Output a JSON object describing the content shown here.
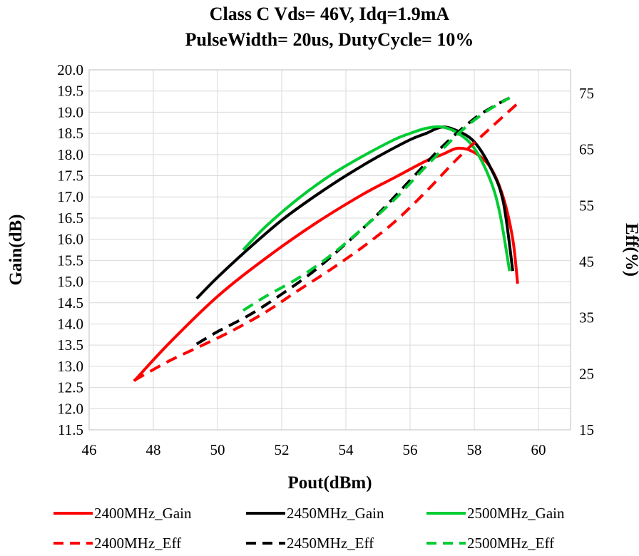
{
  "chart_data": {
    "type": "line",
    "title_lines": [
      "Class C Vds= 46V, Idq=1.9mA",
      "PulseWidth= 20us, DutyCycle= 10%"
    ],
    "xlabel": "Pout(dBm)",
    "ylabel": "Gain(dB)",
    "y2label": "Eff(%)",
    "xlim": [
      46,
      61
    ],
    "ylim": [
      11.5,
      20.0
    ],
    "y2lim": [
      15,
      79.2
    ],
    "x_ticks": [
      46,
      48,
      50,
      52,
      54,
      56,
      58,
      60
    ],
    "y_ticks": [
      11.5,
      12.0,
      12.5,
      13.0,
      13.5,
      14.0,
      14.5,
      15.0,
      15.5,
      16.0,
      16.5,
      17.0,
      17.5,
      18.0,
      18.5,
      19.0,
      19.5,
      20.0
    ],
    "y_tick_labels": [
      "11.5",
      "12.0",
      "12.5",
      "13.0",
      "13.5",
      "14.0",
      "14.5",
      "15.0",
      "15.5",
      "16.0",
      "16.5",
      "17.0",
      "17.5",
      "18.0",
      "18.5",
      "19.0",
      "19.5",
      "20.0"
    ],
    "y2_ticks": [
      15,
      25,
      35,
      45,
      55,
      65,
      75
    ],
    "grid": true,
    "legend_position": "bottom",
    "series": [
      {
        "name": "2400MHz_Gain",
        "axis": "left",
        "color": "#ff0000",
        "dash": false,
        "x": [
          47.4,
          48.5,
          50.0,
          51.5,
          53.0,
          54.5,
          55.5,
          56.5,
          57.0,
          57.5,
          58.0,
          58.5,
          58.9,
          59.2,
          59.35
        ],
        "y": [
          12.65,
          13.55,
          14.65,
          15.55,
          16.35,
          17.05,
          17.45,
          17.85,
          18.0,
          18.15,
          18.05,
          17.7,
          17.0,
          16.0,
          14.95
        ]
      },
      {
        "name": "2450MHz_Gain",
        "axis": "left",
        "color": "#000000",
        "dash": false,
        "x": [
          49.35,
          50.0,
          51.0,
          52.0,
          53.0,
          54.0,
          55.0,
          56.0,
          56.5,
          57.0,
          57.5,
          58.0,
          58.5,
          58.9,
          59.2
        ],
        "y": [
          14.6,
          15.1,
          15.8,
          16.45,
          17.0,
          17.5,
          17.95,
          18.35,
          18.5,
          18.65,
          18.55,
          18.3,
          17.7,
          16.9,
          15.25
        ]
      },
      {
        "name": "2500MHz_Gain",
        "axis": "left",
        "color": "#00cc33",
        "dash": false,
        "x": [
          50.8,
          51.5,
          52.5,
          53.5,
          54.5,
          55.5,
          56.0,
          56.5,
          57.0,
          57.5,
          58.0,
          58.5,
          58.8,
          59.1
        ],
        "y": [
          15.75,
          16.3,
          16.95,
          17.5,
          17.95,
          18.35,
          18.5,
          18.62,
          18.65,
          18.5,
          18.15,
          17.4,
          16.6,
          15.25
        ]
      },
      {
        "name": "2400MHz_Eff",
        "axis": "right",
        "color": "#ff0000",
        "dash": true,
        "x": [
          47.4,
          48.5,
          49.5,
          50.5,
          51.5,
          52.5,
          53.5,
          54.5,
          55.5,
          56.5,
          57.5,
          58.5,
          59.35
        ],
        "y": [
          23.8,
          27.3,
          30.0,
          32.8,
          36.0,
          39.8,
          43.5,
          47.5,
          52.0,
          57.5,
          63.5,
          68.8,
          73.2
        ]
      },
      {
        "name": "2450MHz_Eff",
        "axis": "right",
        "color": "#000000",
        "dash": true,
        "x": [
          49.35,
          50.0,
          51.0,
          52.0,
          53.0,
          54.0,
          55.0,
          56.0,
          57.0,
          58.0,
          58.7,
          59.2
        ],
        "y": [
          30.3,
          32.5,
          35.5,
          39.2,
          43.3,
          48.2,
          53.5,
          59.5,
          65.5,
          70.5,
          73.0,
          74.5
        ]
      },
      {
        "name": "2500MHz_Eff",
        "axis": "right",
        "color": "#00cc33",
        "dash": true,
        "x": [
          50.8,
          51.5,
          52.5,
          53.5,
          54.5,
          55.5,
          56.5,
          57.5,
          58.3,
          59.1
        ],
        "y": [
          36.3,
          38.8,
          42.0,
          46.0,
          50.8,
          56.0,
          62.0,
          67.8,
          71.5,
          74.2
        ]
      }
    ]
  }
}
